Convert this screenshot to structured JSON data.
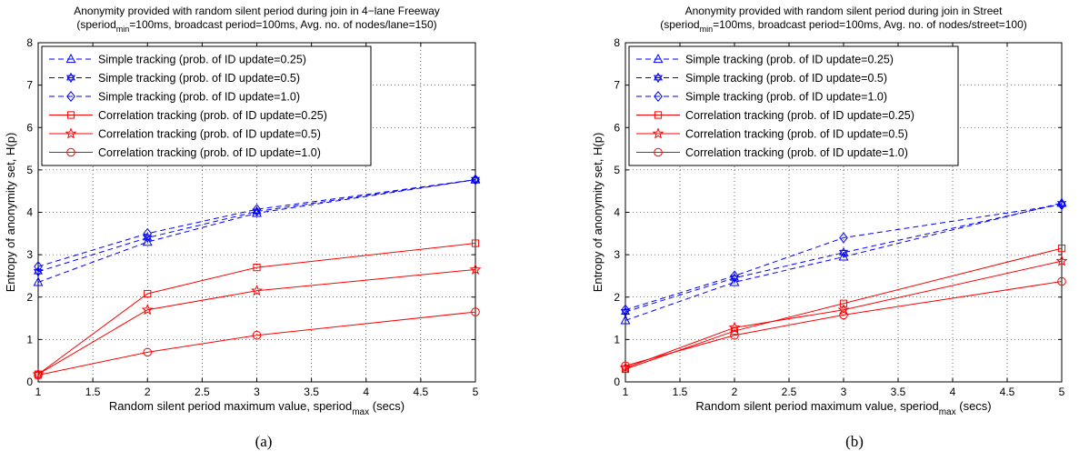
{
  "chart_data": [
    {
      "type": "line",
      "title_line1": "Anonymity provided with random silent period during join in 4−lane Freeway",
      "title_line2_pre": "(speriod",
      "title_line2_sub": "min",
      "title_line2_post": "=100ms, broadcast period=100ms, Avg. no. of nodes/lane=150)",
      "xlabel_pre": "Random silent period maximum value,  speriod",
      "xlabel_sub": "max",
      "xlabel_post": "  (secs)",
      "ylabel": "Entropy of anonymity set,   H(p)",
      "xlim": [
        1,
        5
      ],
      "ylim": [
        0,
        8
      ],
      "xticks": [
        "1",
        "1.5",
        "2",
        "2.5",
        "3",
        "3.5",
        "4",
        "4.5",
        "5"
      ],
      "yticks": [
        "0",
        "1",
        "2",
        "3",
        "4",
        "5",
        "6",
        "7",
        "8"
      ],
      "grid": true,
      "legend_position": "top-left",
      "caption": "(a)",
      "x": [
        1,
        2,
        3,
        5
      ],
      "series": [
        {
          "name": "Simple tracking (prob. of ID update=0.25)",
          "color": "#0000ff",
          "dash": "dashed",
          "marker": "triangle",
          "values": [
            2.35,
            3.3,
            3.98,
            4.77
          ]
        },
        {
          "name": "Simple tracking (prob. of ID update=0.5)",
          "color": "#0000ff",
          "dash": "dashed",
          "marker": "hexagram",
          "values": [
            2.6,
            3.4,
            4.02,
            4.77
          ]
        },
        {
          "name": "Simple tracking (prob. of ID update=1.0)",
          "color": "#0000ff",
          "dash": "dashed",
          "marker": "diamond",
          "values": [
            2.72,
            3.5,
            4.07,
            4.77
          ]
        },
        {
          "name": "Correlation tracking (prob. of ID update=0.25)",
          "color": "#ff0000",
          "dash": "solid",
          "marker": "square",
          "values": [
            0.18,
            2.08,
            2.7,
            3.27
          ]
        },
        {
          "name": "Correlation tracking (prob. of ID update=0.5)",
          "color": "#ff0000",
          "dash": "solid",
          "marker": "star",
          "values": [
            0.18,
            1.7,
            2.15,
            2.65
          ]
        },
        {
          "name": "Correlation tracking (prob. of ID update=1.0)",
          "color": "#ff0000",
          "dash": "solid",
          "marker": "circle",
          "values": [
            0.16,
            0.7,
            1.1,
            1.65
          ]
        }
      ]
    },
    {
      "type": "line",
      "title_line1": "Anonymity provided with random silent period during join in Street",
      "title_line2_pre": "(speriod",
      "title_line2_sub": "min",
      "title_line2_post": "=100ms, broadcast period=100ms, Avg. no. of nodes/street=100)",
      "xlabel_pre": "Random silent period maximum value,  speriod",
      "xlabel_sub": "max",
      "xlabel_post": "  (secs)",
      "ylabel": "Entropy of anonymity set,   H(p)",
      "xlim": [
        1,
        5
      ],
      "ylim": [
        0,
        8
      ],
      "xticks": [
        "1",
        "1.5",
        "2",
        "2.5",
        "3",
        "3.5",
        "4",
        "4.5",
        "5"
      ],
      "yticks": [
        "0",
        "1",
        "2",
        "3",
        "4",
        "5",
        "6",
        "7",
        "8"
      ],
      "grid": true,
      "legend_position": "top-left",
      "caption": "(b)",
      "x": [
        1,
        2,
        3,
        5
      ],
      "series": [
        {
          "name": "Simple tracking (prob. of ID update=0.25)",
          "color": "#0000ff",
          "dash": "dashed",
          "marker": "triangle",
          "values": [
            1.45,
            2.35,
            2.95,
            4.22
          ]
        },
        {
          "name": "Simple tracking (prob. of ID update=0.5)",
          "color": "#0000ff",
          "dash": "dashed",
          "marker": "hexagram",
          "values": [
            1.65,
            2.45,
            3.05,
            4.2
          ]
        },
        {
          "name": "Simple tracking (prob. of ID update=1.0)",
          "color": "#0000ff",
          "dash": "dashed",
          "marker": "diamond",
          "values": [
            1.7,
            2.5,
            3.4,
            4.18
          ]
        },
        {
          "name": "Correlation tracking (prob. of ID update=0.25)",
          "color": "#ff0000",
          "dash": "solid",
          "marker": "square",
          "values": [
            0.3,
            1.2,
            1.85,
            3.15
          ]
        },
        {
          "name": "Correlation tracking (prob. of ID update=0.5)",
          "color": "#ff0000",
          "dash": "solid",
          "marker": "star",
          "values": [
            0.33,
            1.28,
            1.7,
            2.85
          ]
        },
        {
          "name": "Correlation tracking (prob. of ID update=1.0)",
          "color": "#ff0000",
          "dash": "solid",
          "marker": "circle",
          "values": [
            0.38,
            1.1,
            1.58,
            2.37
          ]
        }
      ]
    }
  ]
}
